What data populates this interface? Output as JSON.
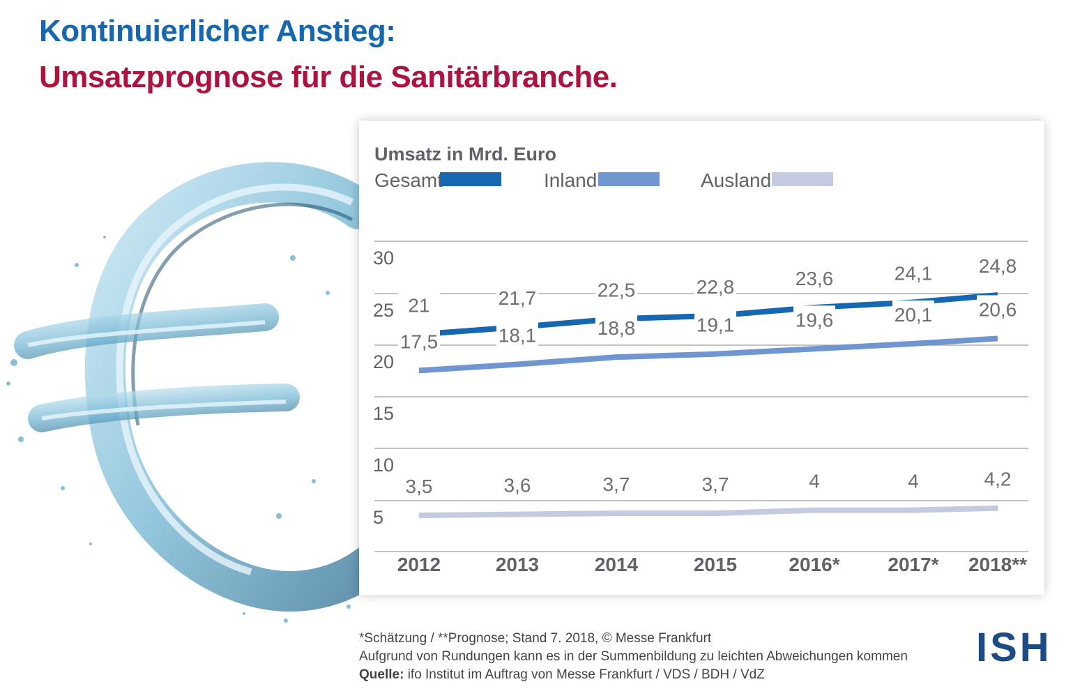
{
  "title_line1": "Kontinuierlicher Anstieg:",
  "title_line2": "Umsatzprognose für die Sanitärbranche.",
  "footnote": {
    "line1": "*Schätzung / **Prognose; Stand 7. 2018, © Messe Frankfurt",
    "line2": "Aufgrund von Rundungen kann es in der Summenbildung zu leichten Abweichungen kommen",
    "source_label": "Quelle:",
    "source_text": "ifo Institut im Auftrag von Messe Frankfurt / VDS / BDH / VdZ"
  },
  "logo_text": "ISH",
  "chart_data": {
    "type": "line",
    "title": "Umsatz in Mrd. Euro",
    "categories": [
      "2012",
      "2013",
      "2014",
      "2015",
      "2016*",
      "2017*",
      "2018**"
    ],
    "series": [
      {
        "name": "Gesamt",
        "color": "#1467b0",
        "values": [
          21,
          21.7,
          22.5,
          22.8,
          23.6,
          24.1,
          24.8
        ],
        "labels": [
          "21",
          "21,7",
          "22,5",
          "22,8",
          "23,6",
          "24,1",
          "24,8"
        ]
      },
      {
        "name": "Inland",
        "color": "#6f96d1",
        "values": [
          17.5,
          18.1,
          18.8,
          19.1,
          19.6,
          20.1,
          20.6
        ],
        "labels": [
          "17,5",
          "18,1",
          "18,8",
          "19,1",
          "19,6",
          "20,1",
          "20,6"
        ]
      },
      {
        "name": "Ausland",
        "color": "#c4cbe0",
        "values": [
          3.5,
          3.6,
          3.7,
          3.7,
          4,
          4,
          4.2
        ],
        "labels": [
          "3,5",
          "3,6",
          "3,7",
          "3,7",
          "4",
          "4",
          "4,2"
        ]
      }
    ],
    "yticks": [
      "30",
      "25",
      "20",
      "15",
      "10",
      "5"
    ],
    "ylim": [
      0,
      30
    ],
    "grid": true,
    "legend_position": "top"
  }
}
